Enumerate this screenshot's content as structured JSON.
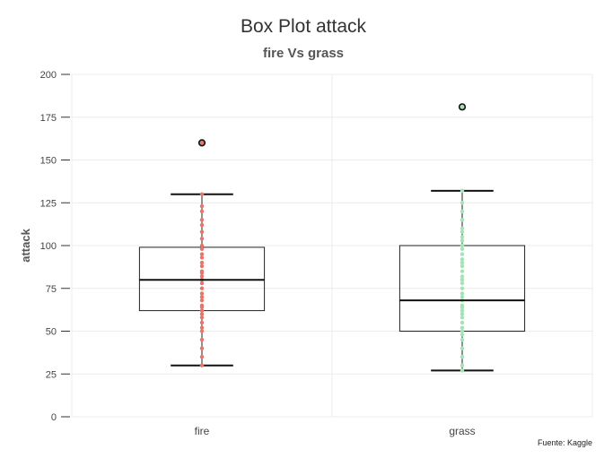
{
  "chart_data": {
    "type": "box",
    "title": "Box Plot attack",
    "subtitle": "fire Vs grass",
    "ylabel": "attack",
    "xlabel": "",
    "ylim": [
      0,
      200
    ],
    "yticks": [
      "0",
      "25",
      "50",
      "75",
      "100",
      "125",
      "150",
      "175",
      "200"
    ],
    "caption": "Fuente: Kaggle",
    "grid": true,
    "categories": [
      "fire",
      "grass"
    ],
    "boxes": [
      {
        "category": "fire",
        "color": "#e8756a",
        "min": 30,
        "q1": 62,
        "median": 80,
        "q3": 99,
        "max": 130,
        "outliers": [
          160
        ],
        "points": [
          30,
          35,
          40,
          45,
          50,
          52,
          55,
          58,
          60,
          62,
          64,
          65,
          68,
          70,
          72,
          75,
          78,
          80,
          82,
          84,
          85,
          88,
          90,
          93,
          95,
          98,
          100,
          104,
          108,
          112,
          115,
          120,
          123,
          130
        ]
      },
      {
        "category": "grass",
        "color": "#a3e3b5",
        "min": 27,
        "q1": 50,
        "median": 68,
        "q3": 100,
        "max": 132,
        "outliers": [
          181
        ],
        "points": [
          27,
          30,
          35,
          40,
          45,
          48,
          50,
          52,
          55,
          58,
          60,
          62,
          64,
          65,
          68,
          70,
          72,
          75,
          78,
          80,
          82,
          85,
          88,
          90,
          92,
          95,
          98,
          100,
          103,
          105,
          108,
          110,
          115,
          120,
          125,
          132
        ]
      }
    ]
  }
}
